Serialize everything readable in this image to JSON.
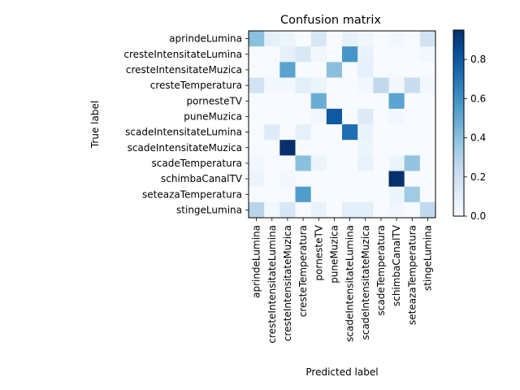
{
  "chart_data": {
    "type": "heatmap",
    "title": "Confusion matrix",
    "xlabel": "Predicted label",
    "ylabel": "True label",
    "labels": [
      "aprindeLumina",
      "cresteIntensitateLumina",
      "cresteIntensitateMuzica",
      "cresteTemperatura",
      "pornesteTV",
      "puneMuzica",
      "scadeIntensitateLumina",
      "scadeIntensitateMuzica",
      "scadeTemperatura",
      "schimbaCanalTV",
      "seteazaTemperatura",
      "stingeLumina"
    ],
    "matrix": [
      [
        0.4,
        0.08,
        0.05,
        0.0,
        0.15,
        0.0,
        0.07,
        0.04,
        0.0,
        0.03,
        0.0,
        0.18
      ],
      [
        0.0,
        0.0,
        0.08,
        0.14,
        0.03,
        0.0,
        0.58,
        0.07,
        0.0,
        0.0,
        0.0,
        0.03
      ],
      [
        0.0,
        0.0,
        0.52,
        0.0,
        0.0,
        0.4,
        0.0,
        0.08,
        0.0,
        0.0,
        0.0,
        0.0
      ],
      [
        0.18,
        0.02,
        0.02,
        0.1,
        0.05,
        0.0,
        0.0,
        0.03,
        0.25,
        0.03,
        0.22,
        0.03
      ],
      [
        0.0,
        0.0,
        0.0,
        0.0,
        0.48,
        0.0,
        0.0,
        0.0,
        0.0,
        0.52,
        0.0,
        0.0
      ],
      [
        0.0,
        0.0,
        0.0,
        0.0,
        0.03,
        0.8,
        0.0,
        0.12,
        0.0,
        0.03,
        0.0,
        0.0
      ],
      [
        0.0,
        0.12,
        0.0,
        0.08,
        0.0,
        0.0,
        0.72,
        0.06,
        0.0,
        0.0,
        0.0,
        0.0
      ],
      [
        0.0,
        0.0,
        0.95,
        0.0,
        0.0,
        0.0,
        0.0,
        0.05,
        0.0,
        0.0,
        0.0,
        0.0
      ],
      [
        0.03,
        0.0,
        0.0,
        0.4,
        0.05,
        0.0,
        0.0,
        0.07,
        0.0,
        0.05,
        0.38,
        0.0
      ],
      [
        0.05,
        0.0,
        0.03,
        0.0,
        0.0,
        0.0,
        0.0,
        0.0,
        0.0,
        0.95,
        0.0,
        0.0
      ],
      [
        0.0,
        0.0,
        0.0,
        0.55,
        0.0,
        0.0,
        0.0,
        0.0,
        0.0,
        0.05,
        0.35,
        0.0
      ],
      [
        0.28,
        0.03,
        0.15,
        0.0,
        0.07,
        0.0,
        0.1,
        0.1,
        0.0,
        0.03,
        0.0,
        0.25
      ]
    ],
    "colorbar": {
      "range": [
        0,
        0.95
      ],
      "ticks": [
        "0.0",
        "0.2",
        "0.4",
        "0.6",
        "0.8"
      ],
      "tick_values": [
        0.0,
        0.2,
        0.4,
        0.6,
        0.8
      ],
      "colormap": "Blues",
      "color_low": "#f7fbff",
      "color_high": "#08306b"
    },
    "grid": false
  }
}
